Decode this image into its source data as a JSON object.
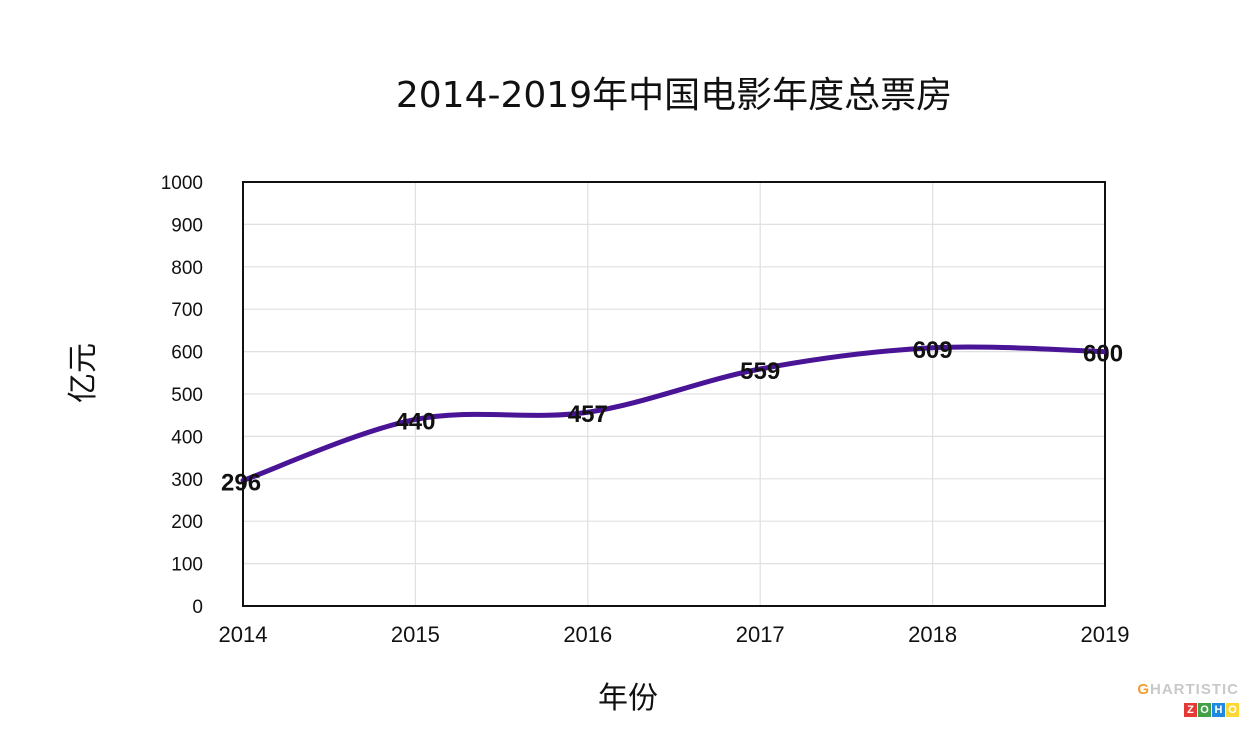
{
  "chart_data": {
    "type": "line",
    "title": "2014-2019年中国电影年度总票房",
    "xlabel": "年份",
    "ylabel": "亿元",
    "categories": [
      "2014",
      "2015",
      "2016",
      "2017",
      "2018",
      "2019"
    ],
    "values": [
      296,
      440,
      457,
      559,
      609,
      600
    ],
    "data_labels": [
      "296",
      "440",
      "457",
      "559",
      "609",
      "600"
    ],
    "ylim": [
      0,
      1000
    ],
    "yticks": [
      "0",
      "100",
      "200",
      "300",
      "400",
      "500",
      "600",
      "700",
      "800",
      "900",
      "1000"
    ],
    "grid": true,
    "smooth": true,
    "line_color": "#4a1497"
  },
  "watermark": {
    "g": "G",
    "text": "HARTISTIC",
    "boxes": [
      "Z",
      "O",
      "H",
      "O"
    ],
    "box_colors": [
      "#e53935",
      "#43a047",
      "#1e88e5",
      "#fdd835"
    ]
  }
}
